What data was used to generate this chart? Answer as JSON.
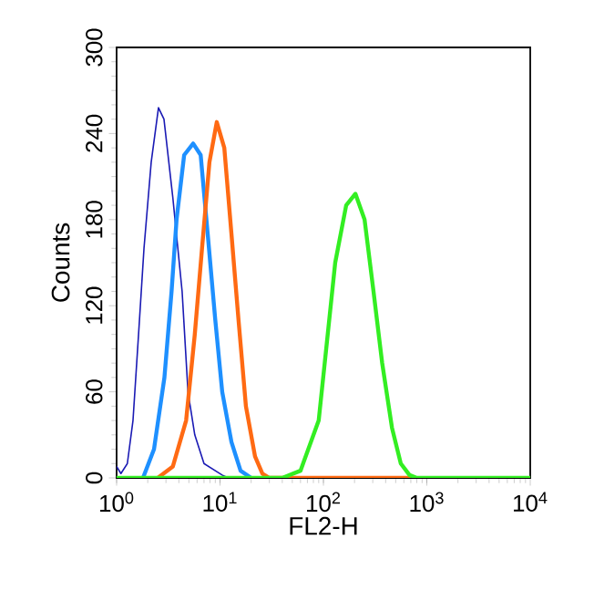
{
  "chart_data": {
    "type": "line",
    "xlabel": "FL2-H",
    "ylabel": "Counts",
    "log": "x",
    "xlim": [
      1,
      10000
    ],
    "xticks": [
      {
        "value": 1,
        "label": "10$^{0}$"
      },
      {
        "value": 10,
        "label": "10$^{1}$"
      },
      {
        "value": 100,
        "label": "10$^{2}$"
      },
      {
        "value": 1000,
        "label": "10$^{3}$"
      },
      {
        "value": 10000,
        "label": "10$^{4}$"
      }
    ],
    "ylim": [
      0,
      300
    ],
    "yticks": [
      0,
      60,
      120,
      180,
      240,
      300
    ],
    "marker": "none",
    "line_style": "solid",
    "series": [
      {
        "color": "#1a1ab4",
        "x": [
          1.0,
          1.1,
          1.27,
          1.44,
          1.63,
          1.84,
          2.16,
          2.54,
          2.87,
          3.5,
          4.3,
          4.9,
          5.7,
          7.0,
          10.5,
          12
        ],
        "values": [
          8,
          3,
          10,
          40,
          100,
          160,
          220,
          258,
          250,
          195,
          130,
          60,
          30,
          10,
          2,
          0
        ]
      },
      {
        "color": "#1e90ff",
        "x": [
          1.8,
          2.3,
          2.9,
          3.4,
          3.8,
          4.5,
          5.5,
          6.5,
          7.6,
          9.0,
          10.5,
          12.9,
          15.8,
          20
        ],
        "values": [
          0,
          20,
          70,
          130,
          180,
          225,
          233,
          225,
          170,
          110,
          60,
          25,
          5,
          0
        ]
      },
      {
        "color": "#ff6a13",
        "x": [
          2.5,
          3.5,
          4.7,
          5.7,
          6.7,
          7.9,
          9.3,
          11,
          12.9,
          15.1,
          17.8,
          21.8,
          25.7,
          30,
          700
        ],
        "values": [
          0,
          8,
          40,
          100,
          160,
          220,
          248,
          230,
          170,
          110,
          50,
          15,
          3,
          0,
          0
        ]
      },
      {
        "color": "#33ee22",
        "x": [
          1,
          40,
          60,
          90,
          110,
          130,
          166,
          204,
          250,
          305,
          370,
          460,
          560,
          680,
          800,
          10000
        ],
        "values": [
          0,
          0,
          5,
          40,
          100,
          150,
          190,
          198,
          180,
          130,
          80,
          35,
          10,
          2,
          0,
          0
        ]
      }
    ]
  }
}
